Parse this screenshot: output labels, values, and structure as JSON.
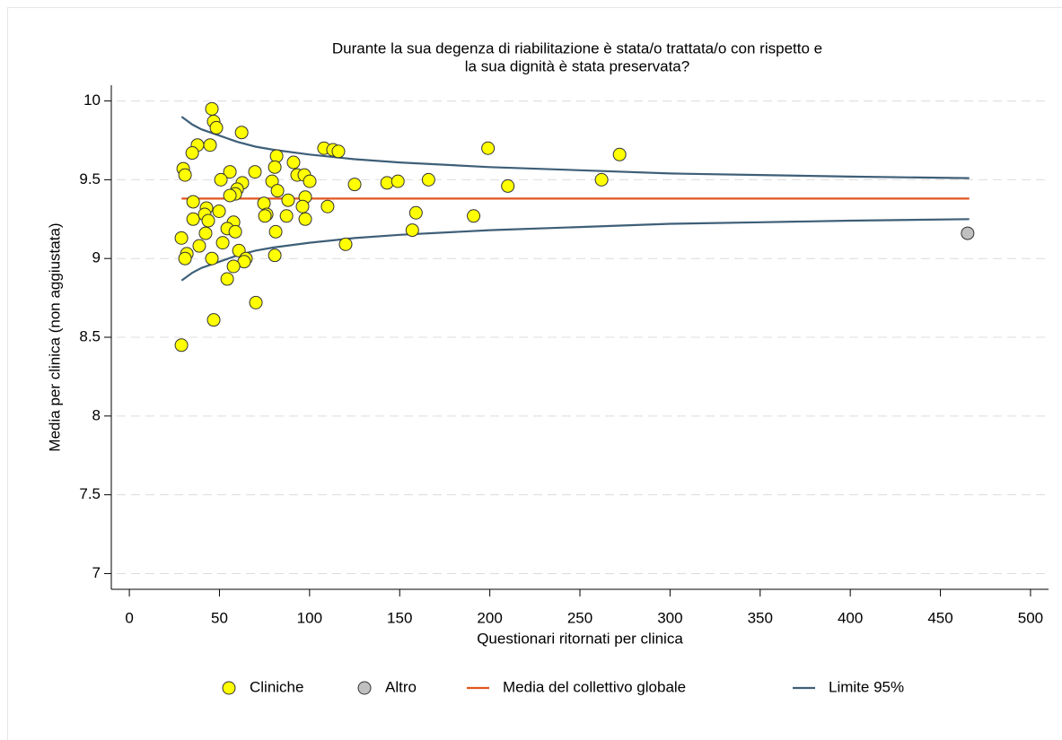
{
  "chart_data": {
    "type": "funnel",
    "title": [
      "Durante la sua degenza di riabilitazione è stata/o trattata/o con rispetto e",
      "la sua dignità è stata preservata?"
    ],
    "xlabel": "Questionari ritornati per clinica",
    "ylabel": "Media  per clinica (non aggiustata)",
    "xlim": [
      -10,
      510
    ],
    "ylim": [
      6.9,
      10.1
    ],
    "xticks": [
      0,
      50,
      100,
      150,
      200,
      250,
      300,
      350,
      400,
      450,
      500
    ],
    "yticks": [
      7,
      7.5,
      8,
      8.5,
      9,
      9.5,
      10
    ],
    "grid": true,
    "series": [
      {
        "name": "Cliniche",
        "kind": "scatter",
        "color": "#ffff00",
        "x": [
          45.8,
          46.8,
          48.3,
          37.8,
          44.8,
          34.9,
          62.3,
          81.7,
          108,
          113,
          116,
          199,
          272,
          29.9,
          30.9,
          55.8,
          69.7,
          80.7,
          91.1,
          93.1,
          97.1,
          100.1,
          50.8,
          62.7,
          79.2,
          59.8,
          58.8,
          55.8,
          82.2,
          97.6,
          96.1,
          110,
          125,
          143,
          149,
          166,
          210,
          262,
          35.4,
          42.8,
          49.8,
          35.4,
          41.8,
          74.7,
          76.2,
          75.2,
          88.1,
          87.2,
          97.6,
          159,
          191,
          43.8,
          57.8,
          54.3,
          42.3,
          28.9,
          58.8,
          81.2,
          157,
          120,
          51.8,
          38.8,
          60.8,
          31.9,
          30.9,
          45.8,
          64.7,
          63.7,
          57.8,
          80.7,
          54.3,
          70.2,
          46.8,
          28.9
        ],
        "values": [
          9.95,
          9.87,
          9.83,
          9.72,
          9.72,
          9.67,
          9.8,
          9.65,
          9.7,
          9.69,
          9.68,
          9.7,
          9.66,
          9.57,
          9.53,
          9.55,
          9.55,
          9.58,
          9.61,
          9.53,
          9.53,
          9.49,
          9.5,
          9.48,
          9.49,
          9.44,
          9.41,
          9.4,
          9.43,
          9.39,
          9.33,
          9.33,
          9.47,
          9.48,
          9.49,
          9.5,
          9.46,
          9.5,
          9.36,
          9.32,
          9.3,
          9.25,
          9.28,
          9.35,
          9.28,
          9.27,
          9.37,
          9.27,
          9.25,
          9.29,
          9.27,
          9.24,
          9.23,
          9.19,
          9.16,
          9.13,
          9.17,
          9.17,
          9.18,
          9.09,
          9.1,
          9.08,
          9.05,
          9.03,
          9,
          9,
          9,
          8.98,
          8.95,
          9.02,
          8.87,
          8.72,
          8.61,
          8.45
        ]
      },
      {
        "name": "Altro",
        "kind": "scatter",
        "color": "#c0c0c0",
        "x": [
          465.1
        ],
        "values": [
          9.16
        ]
      },
      {
        "name": "Media del collettivo globale",
        "kind": "line",
        "color": "#e0561e",
        "x": [
          29,
          466
        ],
        "values": [
          9.38,
          9.38
        ]
      },
      {
        "name": "Limite 95%",
        "kind": "band",
        "color": "#3e5f78",
        "x": [
          29,
          35,
          40,
          50,
          60,
          70,
          80,
          100,
          125,
          150,
          200,
          250,
          300,
          350,
          400,
          466
        ],
        "values": [
          9.9,
          9.85,
          9.82,
          9.78,
          9.74,
          9.71,
          9.69,
          9.66,
          9.63,
          9.61,
          9.58,
          9.56,
          9.54,
          9.53,
          9.52,
          9.51
        ],
        "lower": [
          8.86,
          8.91,
          8.94,
          8.98,
          9.02,
          9.05,
          9.07,
          9.1,
          9.13,
          9.15,
          9.18,
          9.2,
          9.22,
          9.23,
          9.24,
          9.25
        ]
      }
    ]
  }
}
